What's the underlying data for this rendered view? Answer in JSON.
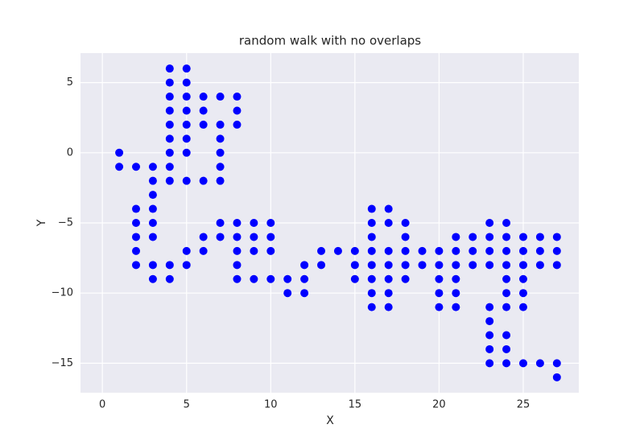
{
  "chart_data": {
    "type": "scatter",
    "title": "random walk with no overlaps",
    "xlabel": "X",
    "ylabel": "Y",
    "color": "#0000ff",
    "grid": true,
    "x": [
      1,
      1,
      2,
      2,
      2,
      2,
      2,
      2,
      3,
      3,
      3,
      3,
      3,
      3,
      3,
      3,
      4,
      4,
      4,
      4,
      4,
      4,
      4,
      4,
      4,
      4,
      4,
      5,
      5,
      5,
      5,
      5,
      5,
      5,
      5,
      5,
      5,
      6,
      6,
      6,
      6,
      6,
      6,
      7,
      7,
      7,
      7,
      7,
      7,
      7,
      7,
      8,
      8,
      8,
      8,
      8,
      8,
      8,
      8,
      9,
      9,
      9,
      9,
      10,
      10,
      10,
      10,
      11,
      11,
      12,
      12,
      12,
      13,
      13,
      14,
      15,
      15,
      15,
      16,
      16,
      16,
      16,
      16,
      16,
      16,
      16,
      17,
      17,
      17,
      17,
      17,
      17,
      17,
      18,
      18,
      18,
      18,
      18,
      19,
      19,
      20,
      20,
      20,
      20,
      20,
      21,
      21,
      21,
      21,
      21,
      21,
      22,
      22,
      22,
      23,
      23,
      23,
      23,
      23,
      23,
      23,
      23,
      23,
      24,
      24,
      24,
      24,
      24,
      24,
      24,
      24,
      24,
      24,
      25,
      25,
      25,
      25,
      25,
      25,
      25,
      26,
      26,
      26,
      26,
      27,
      27,
      27,
      27,
      27
    ],
    "y": [
      0,
      -1,
      -1,
      -4,
      -5,
      -6,
      -7,
      -8,
      -1,
      -2,
      -3,
      -4,
      -5,
      -6,
      -8,
      -9,
      6,
      5,
      4,
      3,
      2,
      1,
      0,
      -1,
      -2,
      -8,
      -9,
      6,
      5,
      4,
      3,
      2,
      1,
      0,
      -2,
      -7,
      -8,
      4,
      3,
      2,
      -2,
      -6,
      -7,
      4,
      2,
      1,
      0,
      -1,
      -2,
      -5,
      -6,
      4,
      3,
      2,
      -5,
      -6,
      -7,
      -8,
      -9,
      -5,
      -6,
      -7,
      -9,
      -5,
      -6,
      -7,
      -9,
      -9,
      -10,
      -8,
      -9,
      -10,
      -7,
      -8,
      -7,
      -7,
      -8,
      -9,
      -4,
      -5,
      -6,
      -7,
      -8,
      -9,
      -10,
      -11,
      -4,
      -5,
      -7,
      -8,
      -9,
      -10,
      -11,
      -5,
      -6,
      -7,
      -8,
      -9,
      -7,
      -8,
      -7,
      -8,
      -9,
      -10,
      -11,
      -6,
      -7,
      -8,
      -9,
      -10,
      -11,
      -6,
      -7,
      -8,
      -5,
      -6,
      -7,
      -8,
      -11,
      -12,
      -13,
      -14,
      -15,
      -5,
      -6,
      -7,
      -8,
      -9,
      -10,
      -11,
      -13,
      -14,
      -15,
      -6,
      -7,
      -8,
      -9,
      -10,
      -11,
      -15,
      -6,
      -7,
      -8,
      -15,
      -6,
      -7,
      -8,
      -15,
      -16
    ],
    "xlim": [
      -1.3,
      28.3
    ],
    "ylim": [
      -17.1,
      7.1
    ],
    "xticks": [
      0,
      5,
      10,
      15,
      20,
      25
    ],
    "yticks": [
      {
        "value": -15,
        "label": "−15"
      },
      {
        "value": -10,
        "label": "−10"
      },
      {
        "value": -5,
        "label": "−5"
      },
      0,
      5
    ]
  }
}
